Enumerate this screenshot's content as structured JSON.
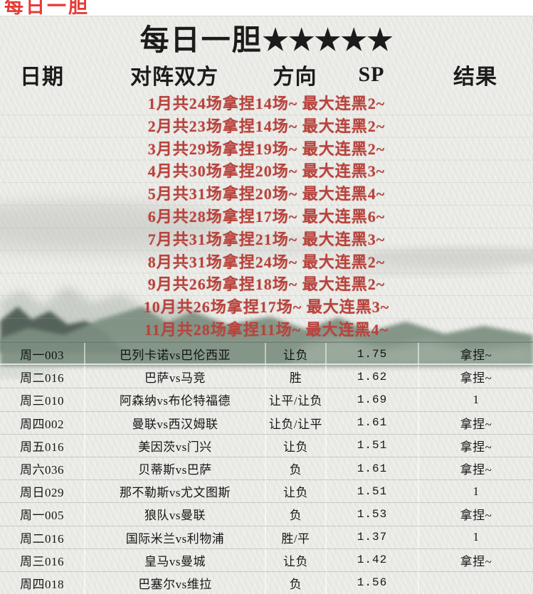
{
  "top_bar": {
    "label": "每日一胆"
  },
  "header": {
    "title": "每日一胆",
    "stars": "★★★★★"
  },
  "columns": [
    "日期",
    "对阵双方",
    "方向",
    "SP",
    "结果"
  ],
  "stats": [
    "1月共24场拿捏14场~ 最大连黑2~",
    "2月共23场拿捏14场~ 最大连黑2~",
    "3月共29场拿捏19场~ 最大连黑2~",
    "4月共30场拿捏20场~ 最大连黑3~",
    "5月共31场拿捏20场~ 最大连黑4~",
    "6月共28场拿捏17场~ 最大连黑6~",
    "7月共31场拿捏21场~ 最大连黑3~",
    "8月共31场拿捏24场~ 最大连黑2~",
    "9月共26场拿捏18场~ 最大连黑2~",
    "10月共26场拿捏17场~ 最大连黑3~",
    "11月共28场拿捏11场~ 最大连黑4~"
  ],
  "rows": [
    {
      "date": "周一003",
      "match": "巴列卡诺vs巴伦西亚",
      "direction": "让负",
      "sp": "1.75",
      "result": "拿捏~"
    },
    {
      "date": "周二016",
      "match": "巴萨vs马竞",
      "direction": "胜",
      "sp": "1.62",
      "result": "拿捏~"
    },
    {
      "date": "周三010",
      "match": "阿森纳vs布伦特福德",
      "direction": "让平/让负",
      "sp": "1.69",
      "result": "1"
    },
    {
      "date": "周四002",
      "match": "曼联vs西汉姆联",
      "direction": "让负/让平",
      "sp": "1.61",
      "result": "拿捏~"
    },
    {
      "date": "周五016",
      "match": "美因茨vs门兴",
      "direction": "让负",
      "sp": "1.51",
      "result": "拿捏~"
    },
    {
      "date": "周六036",
      "match": "贝蒂斯vs巴萨",
      "direction": "负",
      "sp": "1.61",
      "result": "拿捏~"
    },
    {
      "date": "周日029",
      "match": "那不勒斯vs尤文图斯",
      "direction": "让负",
      "sp": "1.51",
      "result": "1"
    },
    {
      "date": "周一005",
      "match": "狼队vs曼联",
      "direction": "负",
      "sp": "1.53",
      "result": "拿捏~"
    },
    {
      "date": "周二016",
      "match": "国际米兰vs利物浦",
      "direction": "胜/平",
      "sp": "1.37",
      "result": "1"
    },
    {
      "date": "周三016",
      "match": "皇马vs曼城",
      "direction": "让负",
      "sp": "1.42",
      "result": "拿捏~"
    },
    {
      "date": "周四018",
      "match": "巴塞尔vs维拉",
      "direction": "负",
      "sp": "1.56",
      "result": ""
    }
  ],
  "colors": {
    "top_red": "#e63b35",
    "accent_red": "#b8433d",
    "ink_black": "#1b1b1b",
    "mountain_green": "#7b8f80",
    "paper": "#e9e9e5"
  }
}
